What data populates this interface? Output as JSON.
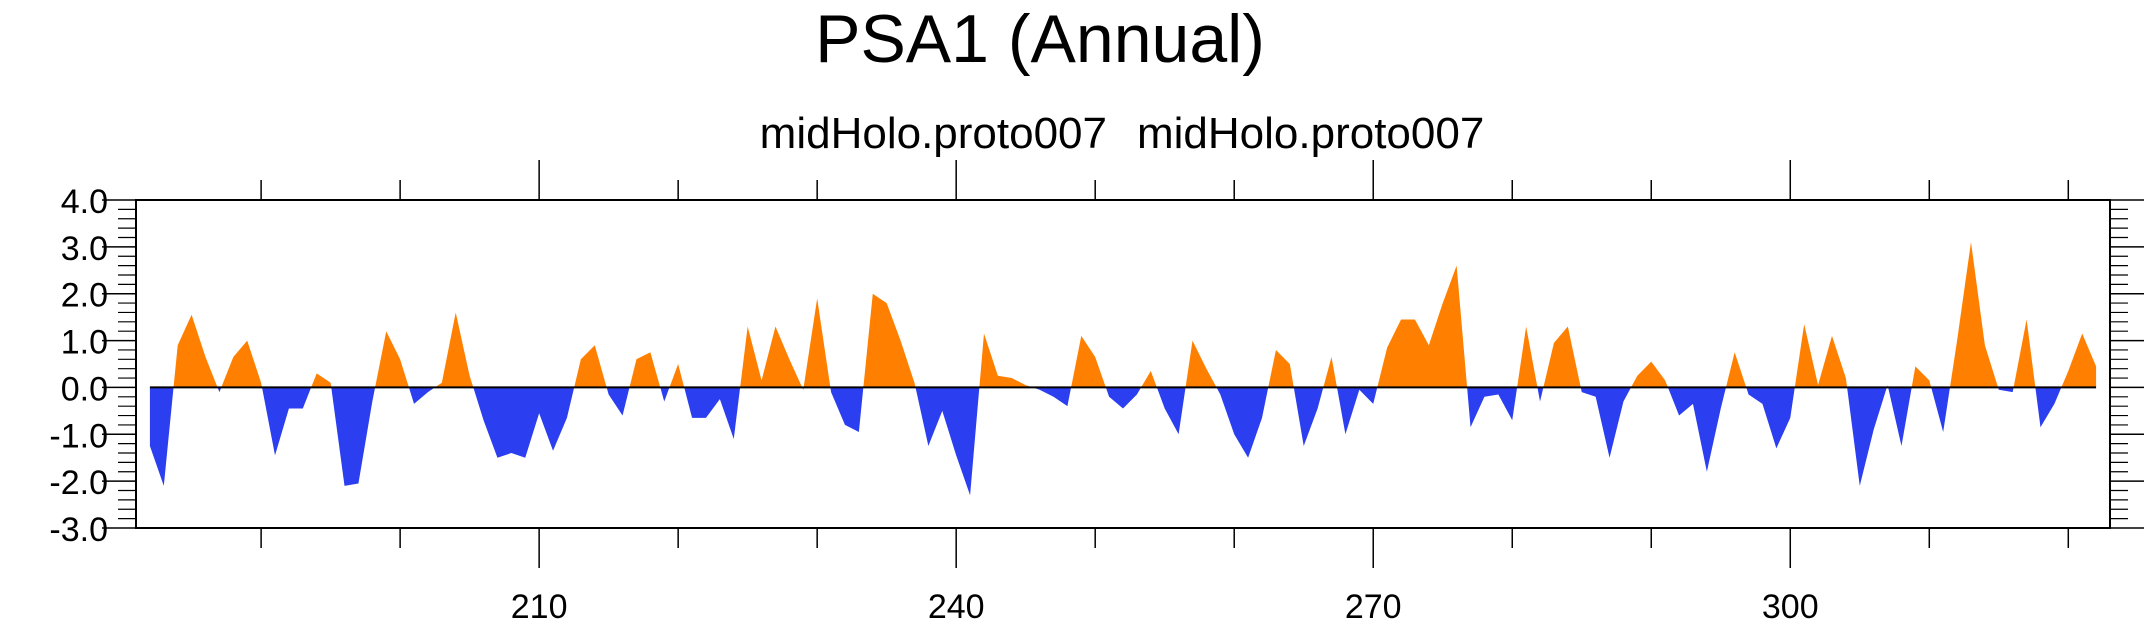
{
  "chart_data": {
    "type": "area",
    "title": "PSA1 (Annual)",
    "subtitle_left": "midHolo.proto007",
    "subtitle_right": "midHolo.proto007",
    "xlabel": "",
    "ylabel": "",
    "xlim": [
      181,
      323
    ],
    "ylim": [
      -3.0,
      4.0
    ],
    "x_ticks": [
      210,
      240,
      270,
      300
    ],
    "y_ticks": [
      4.0,
      3.0,
      2.0,
      1.0,
      0.0,
      -1.0,
      -2.0,
      -3.0
    ],
    "y_tick_labels": [
      "4.0",
      "3.0",
      "2.0",
      "1.0",
      "0.0",
      "-1.0",
      "-2.0",
      "-3.0"
    ],
    "x_tick_labels": [
      "210",
      "240",
      "270",
      "300"
    ],
    "grid": false,
    "positive_color": "#ff8000",
    "negative_color": "#2b3ff0",
    "x": [
      182,
      183,
      184,
      185,
      186,
      187,
      188,
      189,
      190,
      191,
      192,
      193,
      194,
      195,
      196,
      197,
      198,
      199,
      200,
      201,
      202,
      203,
      204,
      205,
      206,
      207,
      208,
      209,
      210,
      211,
      212,
      213,
      214,
      215,
      216,
      217,
      218,
      219,
      220,
      221,
      222,
      223,
      224,
      225,
      226,
      227,
      228,
      229,
      230,
      231,
      232,
      233,
      234,
      235,
      236,
      237,
      238,
      239,
      240,
      241,
      242,
      243,
      244,
      245,
      246,
      247,
      248,
      249,
      250,
      251,
      252,
      253,
      254,
      255,
      256,
      257,
      258,
      259,
      260,
      261,
      262,
      263,
      264,
      265,
      266,
      267,
      268,
      269,
      270,
      271,
      272,
      273,
      274,
      275,
      276,
      277,
      278,
      279,
      280,
      281,
      282,
      283,
      284,
      285,
      286,
      287,
      288,
      289,
      290,
      291,
      292,
      293,
      294,
      295,
      296,
      297,
      298,
      299,
      300,
      301,
      302,
      303,
      304,
      305,
      306,
      307,
      308,
      309,
      310,
      311,
      312,
      313,
      314,
      315,
      316,
      317,
      318,
      319,
      320,
      321,
      322
    ],
    "values": [
      -1.25,
      -2.1,
      0.9,
      1.55,
      0.65,
      -0.1,
      0.65,
      1.0,
      0.1,
      -1.45,
      -0.45,
      -0.45,
      0.3,
      0.1,
      -2.1,
      -2.05,
      -0.3,
      1.2,
      0.6,
      -0.35,
      -0.1,
      0.1,
      1.6,
      0.25,
      -0.7,
      -1.5,
      -1.4,
      -1.5,
      -0.55,
      -1.35,
      -0.65,
      0.6,
      0.9,
      -0.15,
      -0.6,
      0.6,
      0.75,
      -0.3,
      0.5,
      -0.65,
      -0.65,
      -0.25,
      -1.1,
      1.3,
      0.15,
      1.3,
      0.6,
      -0.05,
      1.9,
      -0.1,
      -0.8,
      -0.95,
      2.0,
      1.8,
      1.0,
      0.1,
      -1.25,
      -0.5,
      -1.45,
      -2.3,
      1.15,
      0.25,
      0.2,
      0.05,
      -0.05,
      -0.2,
      -0.4,
      1.1,
      0.65,
      -0.2,
      -0.45,
      -0.15,
      0.35,
      -0.45,
      -1.0,
      1.0,
      0.4,
      -0.15,
      -1.0,
      -1.5,
      -0.65,
      0.8,
      0.5,
      -1.25,
      -0.45,
      0.65,
      -1.0,
      -0.05,
      -0.35,
      0.85,
      1.45,
      1.45,
      0.9,
      1.8,
      2.6,
      -0.85,
      -0.2,
      -0.15,
      -0.7,
      1.3,
      -0.3,
      0.95,
      1.3,
      -0.1,
      -0.2,
      -1.5,
      -0.3,
      0.25,
      0.55,
      0.15,
      -0.6,
      -0.35,
      -1.8,
      -0.45,
      0.75,
      -0.15,
      -0.35,
      -1.3,
      -0.65,
      1.35,
      0.05,
      1.1,
      0.2,
      -2.1,
      -0.9,
      0.05,
      -1.25,
      0.45,
      0.15,
      -0.95,
      1.0,
      3.1,
      0.9,
      -0.05,
      -0.1,
      1.45,
      -0.85,
      -0.35,
      0.35,
      1.15,
      0.45
    ]
  }
}
